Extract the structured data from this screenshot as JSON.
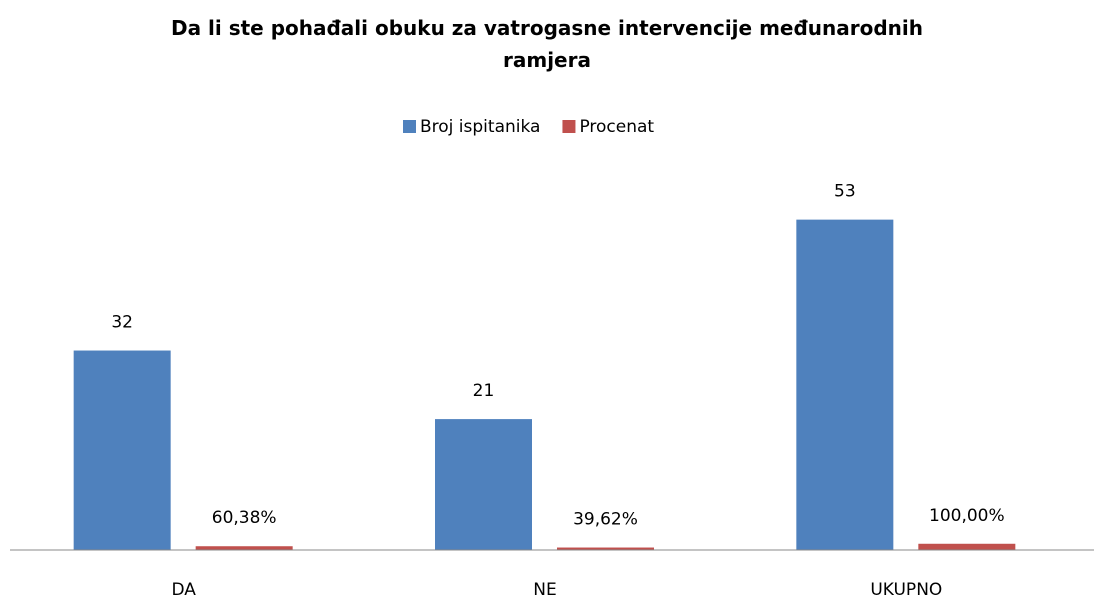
{
  "chart_data": {
    "type": "bar",
    "title": "Da li ste pohađali obuku za vatrogasne intervencije međunarodnih ramjera",
    "categories": [
      "DA",
      "NE",
      "UKUPNO"
    ],
    "series": [
      {
        "name": "Broj ispitanika",
        "color": "#4f81bd",
        "values": [
          32,
          21,
          53
        ]
      },
      {
        "name": "Procenat",
        "color": "#c0504d",
        "values": [
          0.6038,
          0.3962,
          1.0
        ],
        "value_labels": [
          "60,38%",
          "39,62%",
          "100,00%"
        ]
      }
    ],
    "ylim": [
      0,
      60
    ],
    "legend": "top"
  }
}
